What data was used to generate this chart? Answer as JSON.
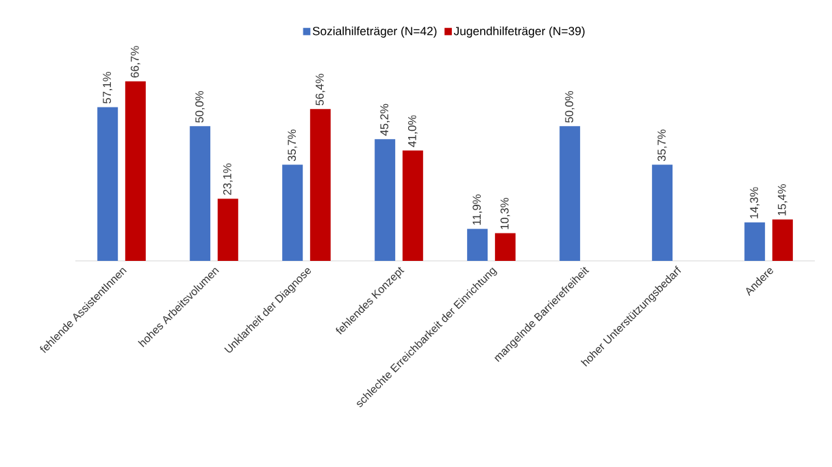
{
  "chart_data": {
    "type": "bar",
    "categories": [
      "fehlende AssistentInnen",
      "hohes Arbeitsvolumen",
      "Unklarheit der Diagnose",
      "fehlendes Konzept",
      "schlechte Erreichbarkeit der Einrichtung",
      "mangelnde Barrierefreiheit",
      "hoher Unterstützungsbedarf",
      "Andere"
    ],
    "series": [
      {
        "name": "Sozialhilfeträger (N=42)",
        "color": "#4472c4",
        "values": [
          57.1,
          50.0,
          35.7,
          45.2,
          11.9,
          50.0,
          35.7,
          14.3
        ],
        "value_labels": [
          "57,1%",
          "50,0%",
          "35,7%",
          "45,2%",
          "11,9%",
          "50,0%",
          "35,7%",
          "14,3%"
        ]
      },
      {
        "name": "Jugendhilfeträger (N=39)",
        "color": "#c00000",
        "values": [
          66.7,
          23.1,
          56.4,
          41.0,
          10.3,
          null,
          null,
          15.4
        ],
        "value_labels": [
          "66,7%",
          "23,1%",
          "56,4%",
          "41,0%",
          "10,3%",
          null,
          null,
          "15,4%"
        ]
      }
    ],
    "legend": "top"
  }
}
